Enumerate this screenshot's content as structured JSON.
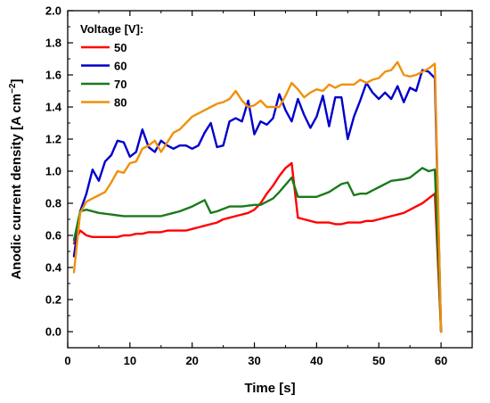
{
  "chart_data": {
    "type": "line",
    "xlabel": "Time [s]",
    "ylabel_main": "Anodic current density [A cm",
    "ylabel_sup": "−2",
    "ylabel_end": "]",
    "xlim": [
      0,
      65
    ],
    "ylim": [
      -0.1,
      2.0
    ],
    "x_ticks": [
      0,
      10,
      20,
      30,
      40,
      50,
      60
    ],
    "y_ticks": [
      0.0,
      0.2,
      0.4,
      0.6,
      0.8,
      1.0,
      1.2,
      1.4,
      1.6,
      1.8,
      2.0
    ],
    "y_tick_labels": [
      "0.0",
      "0.2",
      "0.4",
      "0.6",
      "0.8",
      "1.0",
      "1.2",
      "1.4",
      "1.6",
      "1.8",
      "2.0"
    ],
    "grid": false,
    "legend": {
      "title": "Voltage [V]:",
      "placement": "top-left"
    },
    "series": [
      {
        "name": "50",
        "color": "#ff0000",
        "x": [
          1,
          2,
          3,
          4,
          5,
          6,
          7,
          8,
          9,
          10,
          11,
          12,
          13,
          14,
          15,
          16,
          17,
          18,
          19,
          20,
          21,
          22,
          23,
          24,
          25,
          26,
          27,
          28,
          29,
          30,
          31,
          32,
          33,
          34,
          35,
          36,
          37,
          38,
          39,
          40,
          41,
          42,
          43,
          44,
          45,
          46,
          47,
          48,
          49,
          50,
          51,
          52,
          53,
          54,
          55,
          56,
          57,
          58,
          59,
          60
        ],
        "y": [
          0.55,
          0.63,
          0.6,
          0.59,
          0.59,
          0.59,
          0.59,
          0.59,
          0.6,
          0.6,
          0.61,
          0.61,
          0.62,
          0.62,
          0.62,
          0.63,
          0.63,
          0.63,
          0.63,
          0.64,
          0.65,
          0.66,
          0.67,
          0.68,
          0.7,
          0.71,
          0.72,
          0.73,
          0.74,
          0.76,
          0.8,
          0.86,
          0.91,
          0.97,
          1.02,
          1.05,
          0.71,
          0.7,
          0.69,
          0.68,
          0.68,
          0.68,
          0.67,
          0.67,
          0.68,
          0.68,
          0.68,
          0.69,
          0.69,
          0.7,
          0.71,
          0.72,
          0.73,
          0.74,
          0.76,
          0.78,
          0.8,
          0.83,
          0.86,
          0.0
        ]
      },
      {
        "name": "60",
        "color": "#0000cc",
        "x": [
          1,
          2,
          3,
          4,
          5,
          6,
          7,
          8,
          9,
          10,
          11,
          12,
          13,
          14,
          15,
          16,
          17,
          18,
          19,
          20,
          21,
          22,
          23,
          24,
          25,
          26,
          27,
          28,
          29,
          30,
          31,
          32,
          33,
          34,
          35,
          36,
          37,
          38,
          39,
          40,
          41,
          42,
          43,
          44,
          45,
          46,
          47,
          48,
          49,
          50,
          51,
          52,
          53,
          54,
          55,
          56,
          57,
          58,
          59,
          60
        ],
        "y": [
          0.47,
          0.75,
          0.86,
          1.01,
          0.94,
          1.06,
          1.1,
          1.19,
          1.18,
          1.09,
          1.12,
          1.26,
          1.15,
          1.12,
          1.19,
          1.16,
          1.14,
          1.16,
          1.16,
          1.14,
          1.16,
          1.24,
          1.3,
          1.15,
          1.16,
          1.31,
          1.33,
          1.31,
          1.44,
          1.23,
          1.31,
          1.29,
          1.33,
          1.48,
          1.38,
          1.31,
          1.45,
          1.35,
          1.27,
          1.34,
          1.47,
          1.28,
          1.46,
          1.46,
          1.2,
          1.34,
          1.44,
          1.55,
          1.49,
          1.45,
          1.49,
          1.45,
          1.53,
          1.43,
          1.52,
          1.5,
          1.63,
          1.62,
          1.58,
          0.0
        ]
      },
      {
        "name": "70",
        "color": "#1a7a1a",
        "x": [
          1,
          2,
          3,
          5,
          7,
          9,
          11,
          13,
          15,
          17,
          18,
          20,
          22,
          23,
          24,
          26,
          28,
          30,
          31,
          32,
          33,
          34,
          36,
          37,
          40,
          42,
          44,
          45,
          46,
          47,
          48,
          49,
          50,
          52,
          54,
          55,
          56,
          57,
          58,
          59,
          60
        ],
        "y": [
          0.57,
          0.75,
          0.76,
          0.74,
          0.73,
          0.72,
          0.72,
          0.72,
          0.72,
          0.74,
          0.75,
          0.78,
          0.82,
          0.74,
          0.75,
          0.78,
          0.78,
          0.79,
          0.79,
          0.81,
          0.83,
          0.87,
          0.96,
          0.84,
          0.84,
          0.87,
          0.92,
          0.93,
          0.85,
          0.86,
          0.86,
          0.88,
          0.9,
          0.94,
          0.95,
          0.96,
          0.99,
          1.02,
          1.0,
          1.01,
          0.0
        ]
      },
      {
        "name": "80",
        "color": "#f0900a",
        "x": [
          1,
          2,
          3,
          4,
          5,
          6,
          7,
          8,
          9,
          10,
          11,
          12,
          13,
          14,
          15,
          16,
          17,
          18,
          19,
          20,
          21,
          22,
          23,
          24,
          25,
          26,
          27,
          28,
          29,
          30,
          31,
          32,
          33,
          34,
          35,
          36,
          37,
          38,
          39,
          40,
          41,
          42,
          43,
          44,
          45,
          46,
          47,
          48,
          49,
          50,
          51,
          52,
          53,
          54,
          55,
          56,
          57,
          58,
          59,
          60
        ],
        "y": [
          0.37,
          0.74,
          0.81,
          0.83,
          0.85,
          0.87,
          0.93,
          1.0,
          0.99,
          1.05,
          1.06,
          1.14,
          1.16,
          1.19,
          1.12,
          1.18,
          1.24,
          1.26,
          1.3,
          1.34,
          1.36,
          1.38,
          1.4,
          1.42,
          1.43,
          1.45,
          1.5,
          1.44,
          1.4,
          1.41,
          1.44,
          1.4,
          1.4,
          1.4,
          1.47,
          1.55,
          1.51,
          1.46,
          1.49,
          1.51,
          1.5,
          1.54,
          1.52,
          1.54,
          1.54,
          1.54,
          1.57,
          1.55,
          1.57,
          1.58,
          1.62,
          1.63,
          1.68,
          1.6,
          1.59,
          1.6,
          1.62,
          1.64,
          1.67,
          0.0
        ]
      }
    ]
  }
}
